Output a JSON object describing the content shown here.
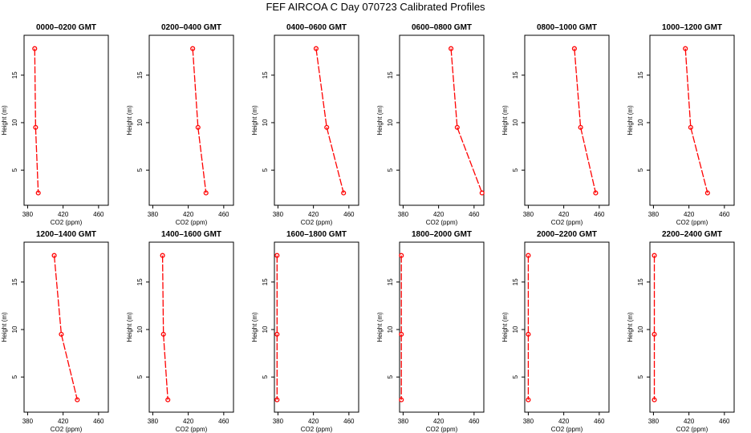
{
  "title": "FEF AIRCOA C  Day 070723  Calibrated Profiles",
  "chart_data": [
    {
      "type": "line",
      "title": "0000–0200 GMT",
      "xlabel": "CO2 (ppm)",
      "ylabel": "Height (m)",
      "xlim": [
        376,
        471
      ],
      "ylim": [
        1.3,
        19.2
      ],
      "xticks": [
        "380",
        "420",
        "460"
      ],
      "yticks": [
        "5",
        "10",
        "15"
      ],
      "x": [
        388,
        389,
        392
      ],
      "y": [
        17.8,
        9.5,
        2.6
      ],
      "color": "#ff0000"
    },
    {
      "type": "line",
      "title": "0200–0400 GMT",
      "xlabel": "CO2 (ppm)",
      "ylabel": "Height (m)",
      "xlim": [
        376,
        471
      ],
      "ylim": [
        1.3,
        19.2
      ],
      "xticks": [
        "380",
        "420",
        "460"
      ],
      "yticks": [
        "5",
        "10",
        "15"
      ],
      "x": [
        425,
        431,
        440
      ],
      "y": [
        17.8,
        9.5,
        2.6
      ],
      "color": "#ff0000"
    },
    {
      "type": "line",
      "title": "0400–0600 GMT",
      "xlabel": "CO2 (ppm)",
      "ylabel": "Height (m)",
      "xlim": [
        376,
        471
      ],
      "ylim": [
        1.3,
        19.2
      ],
      "xticks": [
        "380",
        "420",
        "460"
      ],
      "yticks": [
        "5",
        "10",
        "15"
      ],
      "x": [
        423,
        435,
        454
      ],
      "y": [
        17.8,
        9.5,
        2.6
      ],
      "color": "#ff0000"
    },
    {
      "type": "line",
      "title": "0600–0800 GMT",
      "xlabel": "CO2 (ppm)",
      "ylabel": "Height (m)",
      "xlim": [
        376,
        471
      ],
      "ylim": [
        1.3,
        19.2
      ],
      "xticks": [
        "380",
        "420",
        "460"
      ],
      "yticks": [
        "5",
        "10",
        "15"
      ],
      "x": [
        434,
        441,
        469
      ],
      "y": [
        17.8,
        9.5,
        2.6
      ],
      "color": "#ff0000"
    },
    {
      "type": "line",
      "title": "0800–1000 GMT",
      "xlabel": "CO2 (ppm)",
      "ylabel": "Height (m)",
      "xlim": [
        376,
        471
      ],
      "ylim": [
        1.3,
        19.2
      ],
      "xticks": [
        "380",
        "420",
        "460"
      ],
      "yticks": [
        "5",
        "10",
        "15"
      ],
      "x": [
        432,
        439,
        456
      ],
      "y": [
        17.8,
        9.5,
        2.6
      ],
      "color": "#ff0000"
    },
    {
      "type": "line",
      "title": "1000–1200 GMT",
      "xlabel": "CO2 (ppm)",
      "ylabel": "Height (m)",
      "xlim": [
        376,
        471
      ],
      "ylim": [
        1.3,
        19.2
      ],
      "xticks": [
        "380",
        "420",
        "460"
      ],
      "yticks": [
        "5",
        "10",
        "15"
      ],
      "x": [
        416,
        422,
        441
      ],
      "y": [
        17.8,
        9.5,
        2.6
      ],
      "color": "#ff0000"
    },
    {
      "type": "line",
      "title": "1200–1400 GMT",
      "xlabel": "CO2 (ppm)",
      "ylabel": "Height (m)",
      "xlim": [
        376,
        471
      ],
      "ylim": [
        1.3,
        19.2
      ],
      "xticks": [
        "380",
        "420",
        "460"
      ],
      "yticks": [
        "5",
        "10",
        "15"
      ],
      "x": [
        410,
        418,
        436
      ],
      "y": [
        17.8,
        9.5,
        2.6
      ],
      "color": "#ff0000"
    },
    {
      "type": "line",
      "title": "1400–1600 GMT",
      "xlabel": "CO2 (ppm)",
      "ylabel": "Height (m)",
      "xlim": [
        376,
        471
      ],
      "ylim": [
        1.3,
        19.2
      ],
      "xticks": [
        "380",
        "420",
        "460"
      ],
      "yticks": [
        "5",
        "10",
        "15"
      ],
      "x": [
        391,
        392,
        397
      ],
      "y": [
        17.8,
        9.5,
        2.6
      ],
      "color": "#ff0000"
    },
    {
      "type": "line",
      "title": "1600–1800 GMT",
      "xlabel": "CO2 (ppm)",
      "ylabel": "Height (m)",
      "xlim": [
        376,
        471
      ],
      "ylim": [
        1.3,
        19.2
      ],
      "xticks": [
        "380",
        "420",
        "460"
      ],
      "yticks": [
        "5",
        "10",
        "15"
      ],
      "x": [
        379,
        379,
        379
      ],
      "y": [
        17.8,
        9.5,
        2.6
      ],
      "color": "#ff0000"
    },
    {
      "type": "line",
      "title": "1800–2000 GMT",
      "xlabel": "CO2 (ppm)",
      "ylabel": "Height (m)",
      "xlim": [
        376,
        471
      ],
      "ylim": [
        1.3,
        19.2
      ],
      "xticks": [
        "380",
        "420",
        "460"
      ],
      "yticks": [
        "5",
        "10",
        "15"
      ],
      "x": [
        378,
        378,
        378
      ],
      "y": [
        17.8,
        9.5,
        2.6
      ],
      "color": "#ff0000"
    },
    {
      "type": "line",
      "title": "2000–2200 GMT",
      "xlabel": "CO2 (ppm)",
      "ylabel": "Height (m)",
      "xlim": [
        376,
        471
      ],
      "ylim": [
        1.3,
        19.2
      ],
      "xticks": [
        "380",
        "420",
        "460"
      ],
      "yticks": [
        "5",
        "10",
        "15"
      ],
      "x": [
        380,
        380,
        380
      ],
      "y": [
        17.8,
        9.5,
        2.6
      ],
      "color": "#ff0000"
    },
    {
      "type": "line",
      "title": "2200–2400 GMT",
      "xlabel": "CO2 (ppm)",
      "ylabel": "Height (m)",
      "xlim": [
        376,
        471
      ],
      "ylim": [
        1.3,
        19.2
      ],
      "xticks": [
        "380",
        "420",
        "460"
      ],
      "yticks": [
        "5",
        "10",
        "15"
      ],
      "x": [
        381,
        381,
        381
      ],
      "y": [
        17.8,
        9.5,
        2.6
      ],
      "color": "#ff0000"
    }
  ]
}
